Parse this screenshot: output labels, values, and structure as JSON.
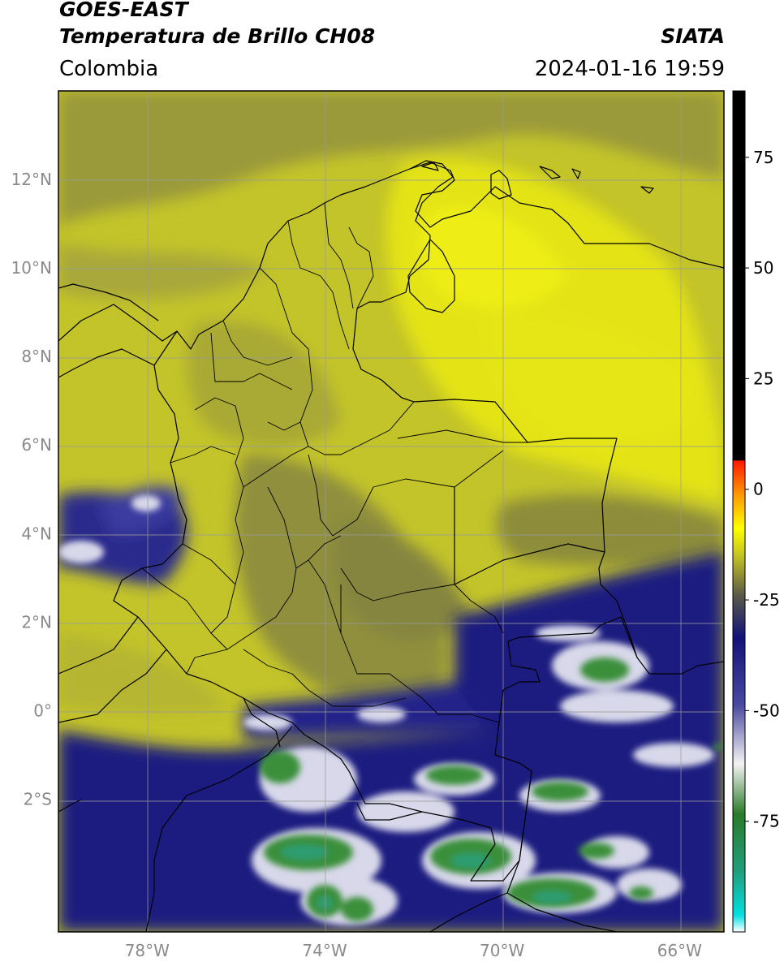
{
  "header": {
    "title_line1": "GOES-EAST",
    "title_line2": "Temperatura de Brillo CH08",
    "brand": "SIATA",
    "region": "Colombia",
    "datetime": "2024-01-16 19:59"
  },
  "map": {
    "lon_range": [
      -80,
      -65
    ],
    "lat_range": [
      -5,
      14
    ],
    "lat_ticks": [
      {
        "value": 12,
        "label": "12°N"
      },
      {
        "value": 10,
        "label": "10°N"
      },
      {
        "value": 8,
        "label": "8°N"
      },
      {
        "value": 6,
        "label": "6°N"
      },
      {
        "value": 4,
        "label": "4°N"
      },
      {
        "value": 2,
        "label": "2°N"
      },
      {
        "value": 0,
        "label": "0°"
      },
      {
        "value": -2,
        "label": "2°S"
      }
    ],
    "lon_ticks": [
      {
        "value": -78,
        "label": "78°W"
      },
      {
        "value": -74,
        "label": "74°W"
      },
      {
        "value": -70,
        "label": "70°W"
      },
      {
        "value": -66,
        "label": "66°W"
      }
    ],
    "colors": {
      "warm_yellow": "#c8c81e",
      "bright_yellow": "#e6e614",
      "olive": "#8c8c3c",
      "dark_blue": "#1e1e8c",
      "white": "#f0f0f5",
      "green": "#3c963c",
      "border": "#000000",
      "grid": "#9a9a9a"
    }
  },
  "colorbar": {
    "range": [
      -100,
      90
    ],
    "ticks": [
      {
        "value": 75,
        "label": "75"
      },
      {
        "value": 50,
        "label": "50"
      },
      {
        "value": 25,
        "label": "25"
      },
      {
        "value": 0,
        "label": "0"
      },
      {
        "value": -25,
        "label": "-25"
      },
      {
        "value": -50,
        "label": "-50"
      },
      {
        "value": -75,
        "label": "-75"
      }
    ]
  }
}
